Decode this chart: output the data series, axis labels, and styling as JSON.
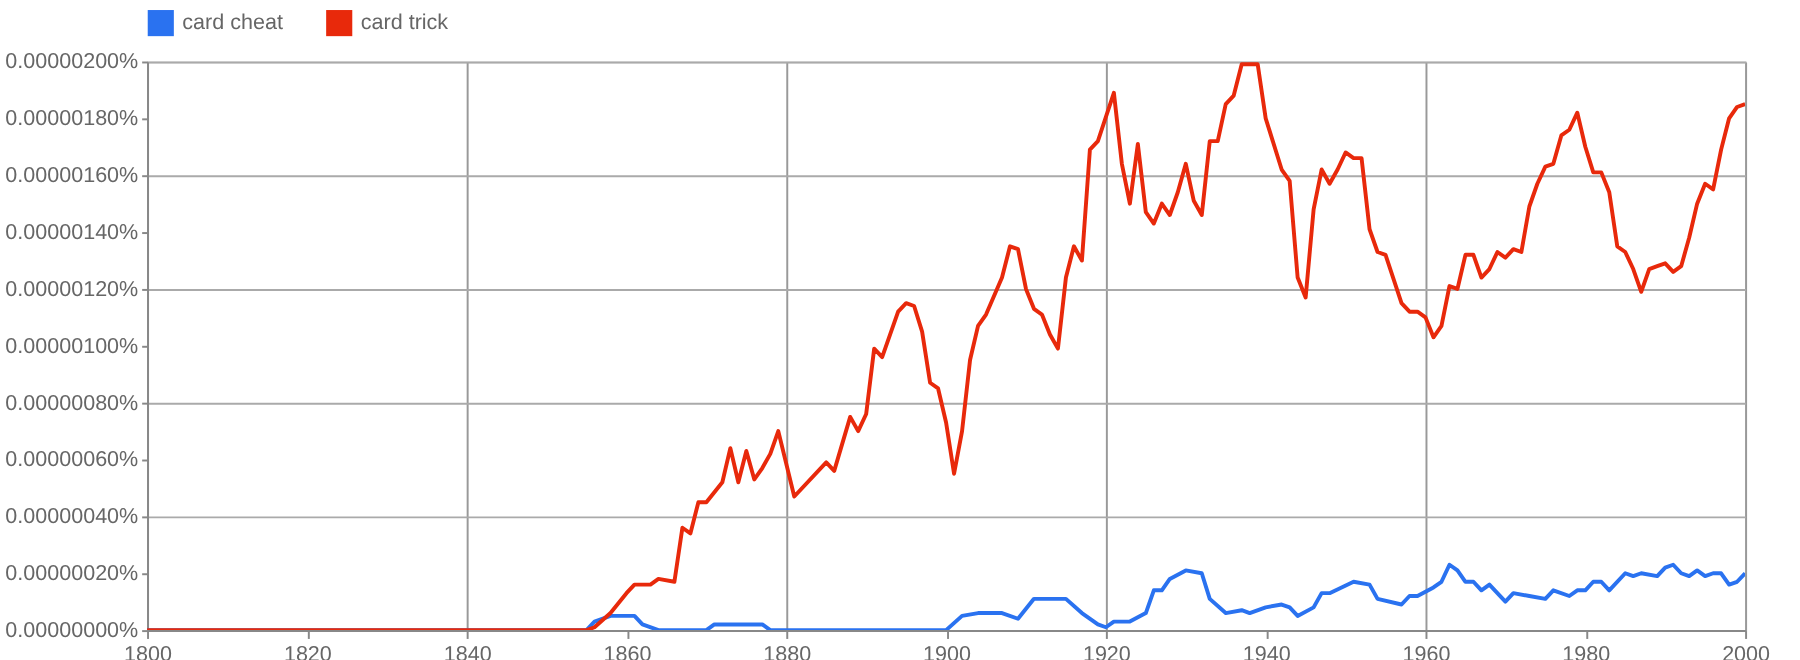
{
  "chart_data": {
    "type": "line",
    "xlim": [
      1800,
      2000
    ],
    "xticks": [
      1800,
      1820,
      1840,
      1860,
      1880,
      1900,
      1920,
      1940,
      1960,
      1980,
      2000
    ],
    "ylim": [
      0,
      2e-06
    ],
    "yticks": [
      {
        "value": 0,
        "label": "0.00000000%"
      },
      {
        "value": 2e-07,
        "label": "0.00000020%"
      },
      {
        "value": 4e-07,
        "label": "0.00000040%"
      },
      {
        "value": 6e-07,
        "label": "0.00000060%"
      },
      {
        "value": 8e-07,
        "label": "0.00000080%"
      },
      {
        "value": 1e-06,
        "label": "0.00000100%"
      },
      {
        "value": 1.2e-06,
        "label": "0.00000120%"
      },
      {
        "value": 1.4e-06,
        "label": "0.00000140%"
      },
      {
        "value": 1.6e-06,
        "label": "0.00000160%"
      },
      {
        "value": 1.8e-06,
        "label": "0.00000180%"
      },
      {
        "value": 2e-06,
        "label": "0.00000200%"
      }
    ],
    "grid": true,
    "legend": "top",
    "series": [
      {
        "name": "card cheat",
        "color": "#2a72f0",
        "x": [
          1800,
          1855,
          1856,
          1858,
          1861,
          1862,
          1864,
          1870,
          1871,
          1877,
          1878,
          1900,
          1902,
          1904,
          1907,
          1909,
          1911,
          1915,
          1917,
          1919,
          1920,
          1921,
          1923,
          1925,
          1926,
          1927,
          1928,
          1930,
          1932,
          1933,
          1935,
          1937,
          1938,
          1940,
          1942,
          1943,
          1944,
          1946,
          1947,
          1948,
          1951,
          1953,
          1954,
          1957,
          1958,
          1959,
          1961,
          1962,
          1963,
          1964,
          1965,
          1966,
          1967,
          1968,
          1970,
          1971,
          1973,
          1975,
          1976,
          1978,
          1979,
          1980,
          1981,
          1982,
          1983,
          1985,
          1986,
          1987,
          1989,
          1990,
          1991,
          1992,
          1993,
          1994,
          1995,
          1996,
          1997,
          1998,
          1999,
          2000
        ],
        "values": [
          0,
          0,
          3e-08,
          5e-08,
          5e-08,
          2e-08,
          0,
          0,
          2e-08,
          2e-08,
          0,
          0,
          5e-08,
          6e-08,
          6e-08,
          4e-08,
          1.1e-07,
          1.1e-07,
          6e-08,
          2e-08,
          1e-08,
          3e-08,
          3e-08,
          6e-08,
          1.4e-07,
          1.4e-07,
          1.8e-07,
          2.1e-07,
          2e-07,
          1.1e-07,
          6e-08,
          7e-08,
          6e-08,
          8e-08,
          9e-08,
          8e-08,
          5e-08,
          8e-08,
          1.3e-07,
          1.3e-07,
          1.7e-07,
          1.6e-07,
          1.1e-07,
          9e-08,
          1.2e-07,
          1.2e-07,
          1.5e-07,
          1.7e-07,
          2.3e-07,
          2.1e-07,
          1.7e-07,
          1.7e-07,
          1.4e-07,
          1.6e-07,
          1e-07,
          1.3e-07,
          1.2e-07,
          1.1e-07,
          1.4e-07,
          1.2e-07,
          1.4e-07,
          1.4e-07,
          1.7e-07,
          1.7e-07,
          1.4e-07,
          2e-07,
          1.9e-07,
          2e-07,
          1.9e-07,
          2.2e-07,
          2.3e-07,
          2e-07,
          1.9e-07,
          2.1e-07,
          1.9e-07,
          2e-07,
          2e-07,
          1.6e-07,
          1.7e-07,
          2e-07
        ]
      },
      {
        "name": "card trick",
        "color": "#e8290b",
        "x": [
          1800,
          1855,
          1856,
          1858,
          1860,
          1861,
          1863,
          1864,
          1866,
          1867,
          1868,
          1869,
          1870,
          1872,
          1873,
          1874,
          1875,
          1876,
          1877,
          1878,
          1879,
          1881,
          1885,
          1886,
          1888,
          1889,
          1890,
          1891,
          1892,
          1894,
          1895,
          1896,
          1897,
          1898,
          1899,
          1900,
          1901,
          1902,
          1903,
          1904,
          1905,
          1907,
          1908,
          1909,
          1910,
          1911,
          1912,
          1913,
          1914,
          1915,
          1916,
          1917,
          1918,
          1919,
          1921,
          1922,
          1923,
          1924,
          1925,
          1926,
          1927,
          1928,
          1929,
          1930,
          1931,
          1932,
          1933,
          1934,
          1935,
          1936,
          1937,
          1939,
          1940,
          1942,
          1943,
          1944,
          1945,
          1946,
          1947,
          1948,
          1949,
          1950,
          1951,
          1952,
          1953,
          1954,
          1955,
          1957,
          1958,
          1959,
          1960,
          1961,
          1962,
          1963,
          1964,
          1965,
          1966,
          1967,
          1968,
          1969,
          1970,
          1971,
          1972,
          1973,
          1974,
          1975,
          1976,
          1977,
          1978,
          1979,
          1980,
          1981,
          1982,
          1983,
          1984,
          1985,
          1986,
          1987,
          1988,
          1989,
          1990,
          1991,
          1992,
          1993,
          1994,
          1995,
          1996,
          1997,
          1998,
          1999,
          2000
        ],
        "values": [
          0,
          0,
          1e-08,
          6e-08,
          1.3e-07,
          1.6e-07,
          1.6e-07,
          1.8e-07,
          1.7e-07,
          3.6e-07,
          3.4e-07,
          4.5e-07,
          4.5e-07,
          5.2e-07,
          6.4e-07,
          5.2e-07,
          6.3e-07,
          5.3e-07,
          5.7e-07,
          6.2e-07,
          7e-07,
          4.7e-07,
          5.9e-07,
          5.6e-07,
          7.5e-07,
          7e-07,
          7.6e-07,
          9.9e-07,
          9.6e-07,
          1.12e-06,
          1.15e-06,
          1.14e-06,
          1.05e-06,
          8.7e-07,
          8.5e-07,
          7.3e-07,
          5.5e-07,
          7e-07,
          9.5e-07,
          1.07e-06,
          1.11e-06,
          1.24e-06,
          1.35e-06,
          1.34e-06,
          1.2e-06,
          1.13e-06,
          1.11e-06,
          1.04e-06,
          9.9e-07,
          1.24e-06,
          1.35e-06,
          1.3e-06,
          1.69e-06,
          1.72e-06,
          1.89e-06,
          1.64e-06,
          1.5e-06,
          1.71e-06,
          1.47e-06,
          1.43e-06,
          1.5e-06,
          1.46e-06,
          1.54e-06,
          1.64e-06,
          1.51e-06,
          1.46e-06,
          1.72e-06,
          1.72e-06,
          1.85e-06,
          1.88e-06,
          1.99e-06,
          1.99e-06,
          1.8e-06,
          1.62e-06,
          1.58e-06,
          1.24e-06,
          1.17e-06,
          1.48e-06,
          1.62e-06,
          1.57e-06,
          1.62e-06,
          1.68e-06,
          1.66e-06,
          1.66e-06,
          1.41e-06,
          1.33e-06,
          1.32e-06,
          1.15e-06,
          1.12e-06,
          1.12e-06,
          1.1e-06,
          1.03e-06,
          1.07e-06,
          1.21e-06,
          1.2e-06,
          1.32e-06,
          1.32e-06,
          1.24e-06,
          1.27e-06,
          1.33e-06,
          1.31e-06,
          1.34e-06,
          1.33e-06,
          1.49e-06,
          1.57e-06,
          1.63e-06,
          1.64e-06,
          1.74e-06,
          1.76e-06,
          1.82e-06,
          1.7e-06,
          1.61e-06,
          1.61e-06,
          1.54e-06,
          1.35e-06,
          1.33e-06,
          1.27e-06,
          1.19e-06,
          1.27e-06,
          1.28e-06,
          1.29e-06,
          1.26e-06,
          1.28e-06,
          1.38e-06,
          1.5e-06,
          1.57e-06,
          1.55e-06,
          1.69e-06,
          1.8e-06,
          1.84e-06,
          1.85e-06
        ]
      }
    ]
  }
}
